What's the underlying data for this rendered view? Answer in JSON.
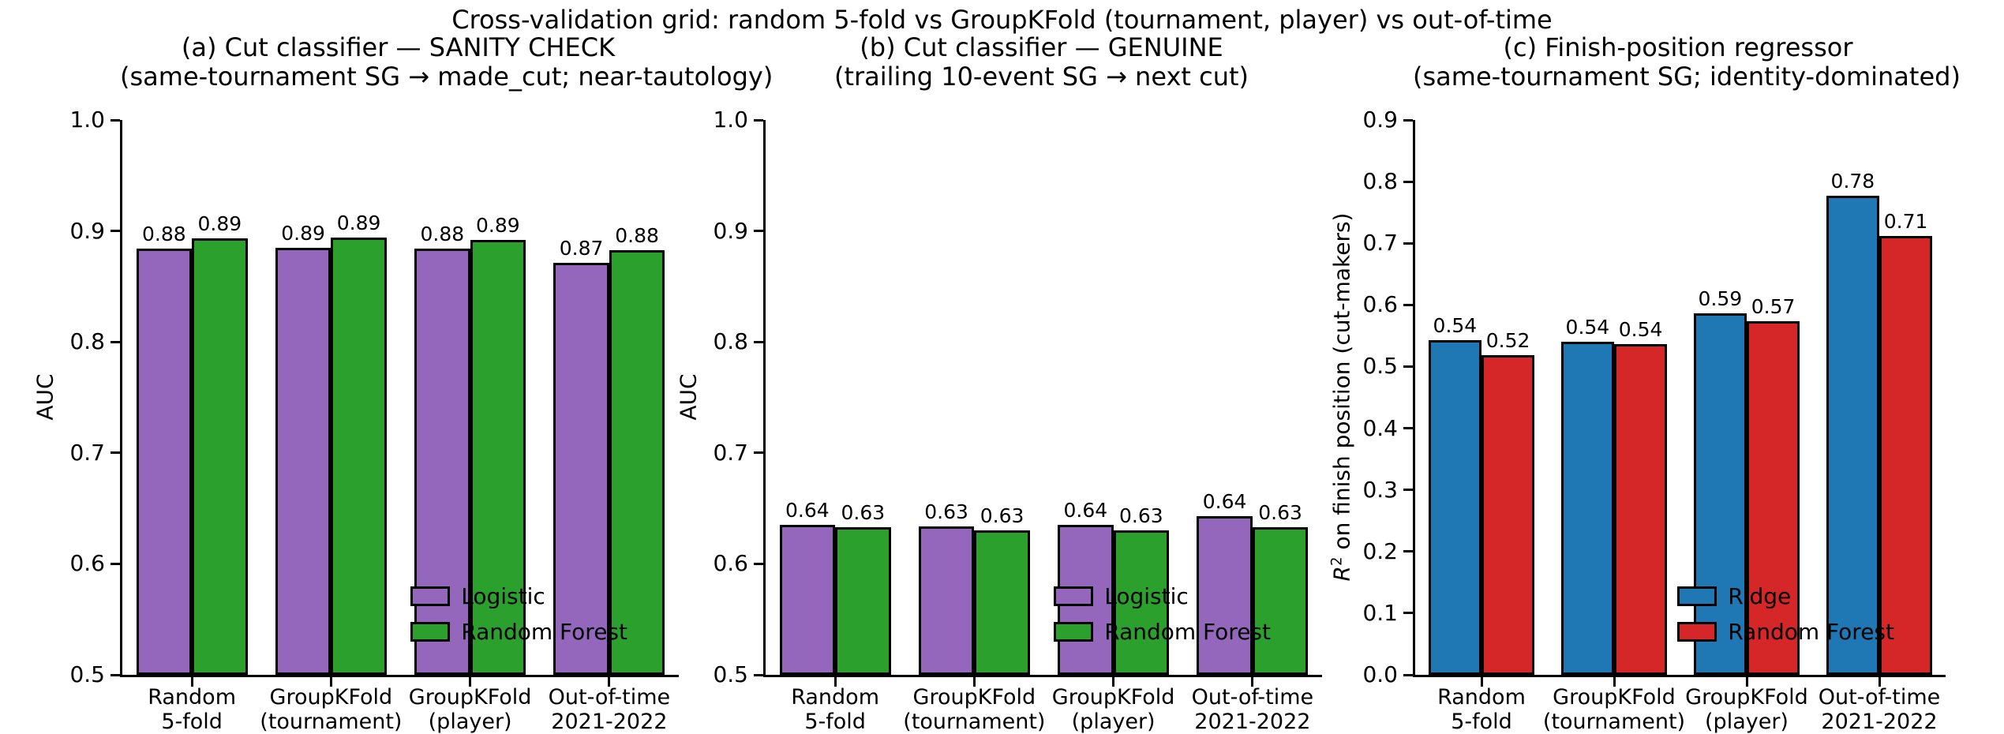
{
  "figure": {
    "suptitle": "Cross-validation grid: random 5-fold vs GroupKFold (tournament, player) vs out-of-time",
    "background": "#ffffff",
    "bar_edge_color": "#000000"
  },
  "category_lines": [
    [
      "Random",
      "5-fold"
    ],
    [
      "GroupKFold",
      "(tournament)"
    ],
    [
      "GroupKFold",
      "(player)"
    ],
    [
      "Out-of-time",
      "2021-2022"
    ]
  ],
  "chart_data": [
    {
      "type": "bar",
      "panel": "a",
      "title": "(a) Cut classifier — SANITY CHECK",
      "subtitle": "(same-tournament SG → made_cut; near-tautology)",
      "xlabel": "",
      "ylabel": "AUC",
      "ylim": [
        0.5,
        1.0
      ],
      "yticks": [
        0.5,
        0.6,
        0.7,
        0.8,
        0.9,
        1.0
      ],
      "grid": false,
      "categories": [
        "Random 5-fold",
        "GroupKFold (tournament)",
        "GroupKFold (player)",
        "Out-of-time 2021-2022"
      ],
      "series": [
        {
          "name": "Logistic",
          "color": "#9467bd",
          "values": [
            0.884,
            0.885,
            0.884,
            0.871
          ],
          "labels": [
            "0.88",
            "0.89",
            "0.88",
            "0.87"
          ]
        },
        {
          "name": "Random Forest",
          "color": "#2ca02c",
          "values": [
            0.893,
            0.894,
            0.892,
            0.883
          ],
          "labels": [
            "0.89",
            "0.89",
            "0.89",
            "0.88"
          ]
        }
      ],
      "legend": {
        "entries": [
          "Logistic",
          "Random Forest"
        ],
        "position": "lower right",
        "frame": false
      }
    },
    {
      "type": "bar",
      "panel": "b",
      "title": "(b) Cut classifier — GENUINE",
      "subtitle": "(trailing 10-event SG → next cut)",
      "xlabel": "",
      "ylabel": "AUC",
      "ylim": [
        0.5,
        1.0
      ],
      "yticks": [
        0.5,
        0.6,
        0.7,
        0.8,
        0.9,
        1.0
      ],
      "grid": false,
      "categories": [
        "Random 5-fold",
        "GroupKFold (tournament)",
        "GroupKFold (player)",
        "Out-of-time 2021-2022"
      ],
      "series": [
        {
          "name": "Logistic",
          "color": "#9467bd",
          "values": [
            0.635,
            0.634,
            0.635,
            0.643
          ],
          "labels": [
            "0.64",
            "0.63",
            "0.64",
            "0.64"
          ]
        },
        {
          "name": "Random Forest",
          "color": "#2ca02c",
          "values": [
            0.633,
            0.63,
            0.63,
            0.633
          ],
          "labels": [
            "0.63",
            "0.63",
            "0.63",
            "0.63"
          ]
        }
      ],
      "legend": {
        "entries": [
          "Logistic",
          "Random Forest"
        ],
        "position": "lower right",
        "frame": false
      }
    },
    {
      "type": "bar",
      "panel": "c",
      "title": "(c) Finish-position regressor",
      "subtitle": "(same-tournament SG; identity-dominated)",
      "xlabel": "",
      "ylabel": "R² on finish position (cut-makers)",
      "ylabel_parts": {
        "italic": "R",
        "sup": "2",
        "rest": " on finish position (cut-makers)"
      },
      "ylim": [
        0.0,
        0.9
      ],
      "yticks": [
        0.0,
        0.1,
        0.2,
        0.3,
        0.4,
        0.5,
        0.6,
        0.7,
        0.8,
        0.9
      ],
      "grid": false,
      "categories": [
        "Random 5-fold",
        "GroupKFold (tournament)",
        "GroupKFold (player)",
        "Out-of-time 2021-2022"
      ],
      "series": [
        {
          "name": "Ridge",
          "color": "#1f77b4",
          "values": [
            0.543,
            0.54,
            0.587,
            0.777
          ],
          "labels": [
            "0.54",
            "0.54",
            "0.59",
            "0.78"
          ]
        },
        {
          "name": "Random Forest",
          "color": "#d62728",
          "values": [
            0.519,
            0.537,
            0.574,
            0.712
          ],
          "labels": [
            "0.52",
            "0.54",
            "0.57",
            "0.71"
          ]
        }
      ],
      "legend": {
        "entries": [
          "Ridge",
          "Random Forest"
        ],
        "position": "lower right",
        "frame": false
      }
    }
  ]
}
